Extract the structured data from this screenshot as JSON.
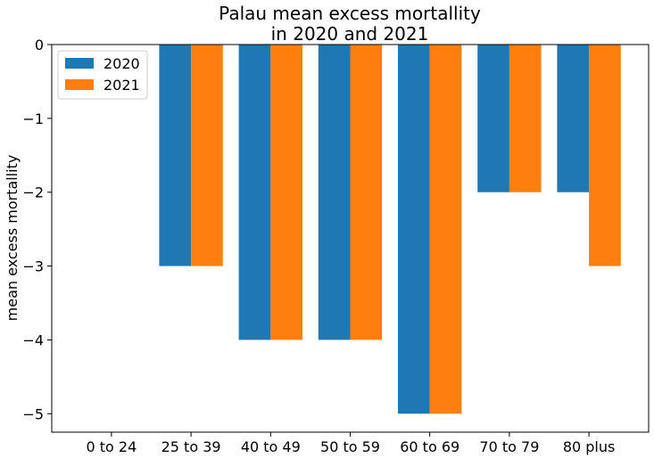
{
  "chart_data": {
    "type": "bar",
    "title": "Palau mean excess mortallity\nin 2020 and 2021",
    "xlabel": "",
    "ylabel": "mean excess mortallity",
    "categories": [
      "0 to 24",
      "25 to 39",
      "40 to 49",
      "50 to 59",
      "60 to 69",
      "70 to 79",
      "80 plus"
    ],
    "series": [
      {
        "name": "2020",
        "color": "#1f77b4",
        "values": [
          0,
          -3,
          -4,
          -4,
          -5,
          -2,
          -2
        ]
      },
      {
        "name": "2021",
        "color": "#ff7f0e",
        "values": [
          0,
          -3,
          -4,
          -4,
          -5,
          -2,
          -3
        ]
      }
    ],
    "ylim": [
      -5.25,
      0
    ],
    "yticks": [
      0,
      -1,
      -2,
      -3,
      -4,
      -5
    ],
    "ytick_labels": [
      "0",
      "−1",
      "−2",
      "−3",
      "−4",
      "−5"
    ],
    "legend_position": "top-left",
    "grid": false
  }
}
